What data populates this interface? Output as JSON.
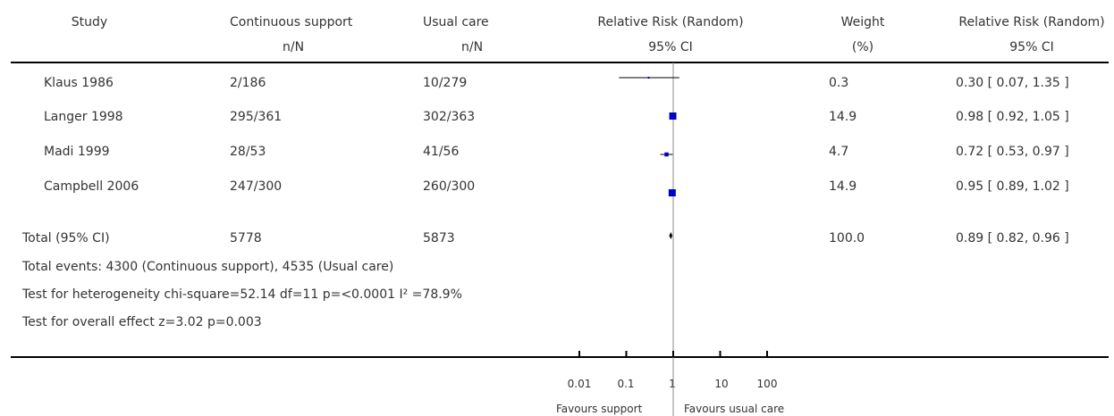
{
  "header": {
    "study": "Study",
    "treat_group": "Continuous support",
    "treat_unit": "n/N",
    "control_group": "Usual care",
    "control_unit": "n/N",
    "effect_measure": "Relative Risk (Random)",
    "ci_label": "95% CI",
    "weight": "Weight",
    "weight_unit": "(%)",
    "effect_measure_right": "Relative Risk (Random)",
    "ci_label_right": "95% CI"
  },
  "studies": [
    {
      "name": "Klaus 1986",
      "treat": "2/186",
      "control": "10/279",
      "weight": "0.3",
      "ci_text": "0.30 [ 0.07, 1.35 ]"
    },
    {
      "name": "Langer 1998",
      "treat": "295/361",
      "control": "302/363",
      "weight": "14.9",
      "ci_text": "0.98 [ 0.92, 1.05 ]"
    },
    {
      "name": "Madi 1999",
      "treat": "28/53",
      "control": "41/56",
      "weight": "4.7",
      "ci_text": "0.72 [ 0.53, 0.97 ]"
    },
    {
      "name": "Campbell 2006",
      "treat": "247/300",
      "control": "260/300",
      "weight": "14.9",
      "ci_text": "0.95 [ 0.89, 1.02 ]"
    }
  ],
  "total": {
    "name": "Total (95% CI)",
    "treat": "5778",
    "control": "5873",
    "weight": "100.0",
    "ci_text": "0.89 [ 0.82, 0.96 ]"
  },
  "footnotes": [
    "Total events: 4300 (Continuous support), 4535 (Usual care)",
    "Test for heterogeneity chi-square=52.14 df=11 p=<0.0001 I² =78.9%",
    "Test for overall effect z=3.02   p=0.003"
  ],
  "axis": {
    "ticks": [
      "0.01",
      "0.1",
      "1",
      "10",
      "100"
    ],
    "favours_left": "Favours support",
    "favours_right": "Favours usual care"
  },
  "chart_data": {
    "type": "forest",
    "scale": "log10",
    "xlim": [
      0.01,
      100
    ],
    "tick_values": [
      0.01,
      0.1,
      1,
      10,
      100
    ],
    "null_value": 1,
    "studies": [
      {
        "name": "Klaus 1986",
        "rr": 0.3,
        "lo": 0.07,
        "hi": 1.35,
        "weight": 0.3
      },
      {
        "name": "Langer 1998",
        "rr": 0.98,
        "lo": 0.92,
        "hi": 1.05,
        "weight": 14.9
      },
      {
        "name": "Madi 1999",
        "rr": 0.72,
        "lo": 0.53,
        "hi": 0.97,
        "weight": 4.7
      },
      {
        "name": "Campbell 2006",
        "rr": 0.95,
        "lo": 0.89,
        "hi": 1.02,
        "weight": 14.9
      }
    ],
    "pooled": {
      "name": "Total (95% CI)",
      "rr": 0.89,
      "lo": 0.82,
      "hi": 0.96,
      "weight": 100.0
    },
    "colors": {
      "box": "#0000cc",
      "line": "#000000",
      "axis": "#000000",
      "null_line": "#888888"
    }
  }
}
